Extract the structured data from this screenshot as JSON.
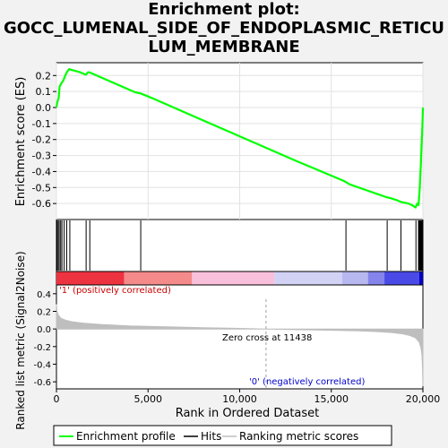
{
  "title_lines": [
    "Enrichment plot:",
    "GOCC_LUMENAL_SIDE_OF_ENDOPLASMIC_RETICU",
    "LUM_MEMBRANE"
  ],
  "colors": {
    "background": "#f2f2f2",
    "panel": "#ffffff",
    "profile": "#00ff00",
    "hits": "#000000",
    "metric": "#bebebe",
    "pos_label": "#cc0000",
    "neg_label": "#0000cc",
    "zero_line": "#a0a0a0"
  },
  "chart_data": [
    {
      "type": "line",
      "name": "enrichment-profile",
      "ylabel": "Enrichment score (ES)",
      "xlim": [
        0,
        20000
      ],
      "ylim": [
        -0.7,
        0.28
      ],
      "yticks": [
        -0.6,
        -0.5,
        -0.4,
        -0.3,
        -0.2,
        -0.1,
        0.0,
        0.1,
        0.2
      ],
      "ytick_labels": [
        "-0.6",
        "-0.5",
        "-0.4",
        "-0.3",
        "-0.2",
        "-0.1",
        "0.0",
        "0.1",
        "0.2"
      ],
      "grid": true,
      "x": [
        0,
        40,
        120,
        170,
        260,
        380,
        480,
        560,
        700,
        820,
        1000,
        1300,
        1600,
        1650,
        1720,
        1800,
        2000,
        2600,
        3400,
        4300,
        4600,
        5200,
        7000,
        10000,
        13000,
        15700,
        16000,
        17000,
        17500,
        18000,
        18200,
        18600,
        18800,
        19200,
        19400,
        19600,
        19650,
        19700,
        19760,
        19800,
        19830,
        19850,
        19870,
        19890,
        19900,
        19920,
        19940,
        19960,
        19980,
        20000
      ],
      "y": [
        0.0,
        0.03,
        0.06,
        0.13,
        0.15,
        0.17,
        0.2,
        0.22,
        0.24,
        0.235,
        0.23,
        0.22,
        0.205,
        0.21,
        0.22,
        0.22,
        0.21,
        0.18,
        0.14,
        0.095,
        0.088,
        0.06,
        -0.03,
        -0.18,
        -0.33,
        -0.46,
        -0.48,
        -0.52,
        -0.54,
        -0.56,
        -0.565,
        -0.58,
        -0.59,
        -0.6,
        -0.61,
        -0.625,
        -0.61,
        -0.6,
        -0.61,
        -0.55,
        -0.5,
        -0.45,
        -0.4,
        -0.35,
        -0.3,
        -0.25,
        -0.2,
        -0.15,
        -0.08,
        0.0
      ]
    },
    {
      "type": "scatter",
      "name": "hits",
      "xlim": [
        0,
        20000
      ],
      "x": [
        30,
        90,
        150,
        230,
        300,
        420,
        560,
        730,
        1620,
        1820,
        4600,
        15800,
        18050,
        18800,
        19620,
        19760,
        19800,
        19830,
        19855,
        19880,
        19900,
        19920,
        19940,
        19960,
        19980
      ]
    },
    {
      "type": "heatmap",
      "name": "rank-colorbar",
      "xlim": [
        0,
        20000
      ],
      "segments": [
        {
          "start": 0,
          "end": 3700,
          "color": "#ee3340"
        },
        {
          "start": 3700,
          "end": 7400,
          "color": "#f58a8a"
        },
        {
          "start": 7400,
          "end": 11900,
          "color": "#f9c0dc"
        },
        {
          "start": 11900,
          "end": 15600,
          "color": "#d2d2f5"
        },
        {
          "start": 15600,
          "end": 17000,
          "color": "#b8b8f0"
        },
        {
          "start": 17000,
          "end": 17900,
          "color": "#8484ec"
        },
        {
          "start": 17900,
          "end": 19800,
          "color": "#4a4ae6"
        },
        {
          "start": 19800,
          "end": 20000,
          "color": "#0000c8"
        }
      ]
    },
    {
      "type": "area",
      "name": "ranked-list-metric",
      "ylabel": "Ranked list metric (Signal2Noise)",
      "xlabel": "Rank in Ordered Dataset",
      "xlim": [
        0,
        20000
      ],
      "ylim": [
        -0.68,
        0.5
      ],
      "yticks": [
        -0.6,
        -0.4,
        -0.2,
        0.0,
        0.2,
        0.4
      ],
      "ytick_labels": [
        "-0.6",
        "-0.4",
        "-0.2",
        "0.0",
        "0.2",
        "0.4"
      ],
      "xticks": [
        0,
        5000,
        10000,
        15000,
        20000
      ],
      "xtick_labels": [
        "0",
        "5,000",
        "10,000",
        "15,000",
        "20,000"
      ],
      "x": [
        0,
        30,
        100,
        250,
        500,
        900,
        1500,
        2500,
        4000,
        6000,
        8000,
        10000,
        11438,
        13000,
        15000,
        16500,
        17500,
        18300,
        18900,
        19300,
        19600,
        19800,
        19900,
        19950,
        19980,
        20000
      ],
      "y": [
        0.28,
        0.2,
        0.16,
        0.12,
        0.1,
        0.08,
        0.065,
        0.05,
        0.035,
        0.025,
        0.015,
        0.007,
        0.0,
        -0.008,
        -0.015,
        -0.022,
        -0.03,
        -0.04,
        -0.055,
        -0.075,
        -0.1,
        -0.15,
        -0.22,
        -0.3,
        -0.45,
        -0.65
      ],
      "zero_cross_label": "Zero cross at 11438",
      "zero_cross": 11438,
      "pos_label": "'1' (positively correlated)",
      "neg_label": "'0' (negatively correlated)"
    }
  ],
  "legend": {
    "placement": "bottom",
    "items": [
      {
        "label": "Enrichment profile",
        "kind": "profile"
      },
      {
        "label": "Hits",
        "kind": "hits"
      },
      {
        "label": "Ranking metric scores",
        "kind": "metric"
      }
    ]
  }
}
